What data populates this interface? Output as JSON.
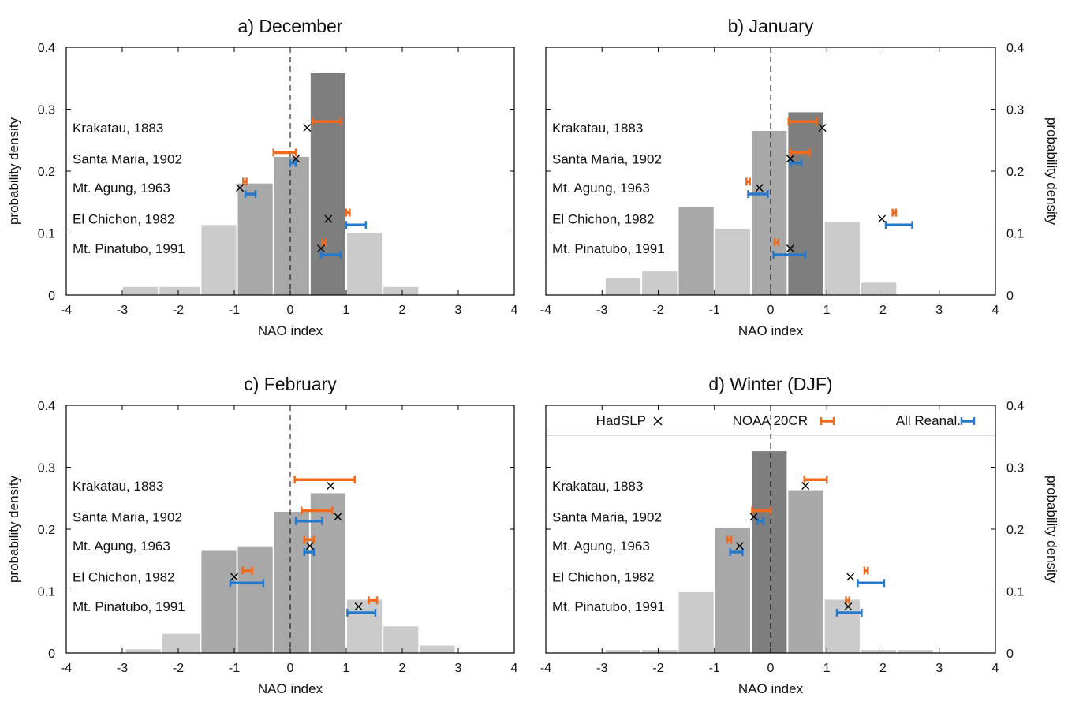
{
  "figure": {
    "xlabel": "NAO index",
    "ylabel": "probability density",
    "xticks": [
      "-4",
      "-3",
      "-2",
      "-1",
      "0",
      "1",
      "2",
      "3",
      "4"
    ],
    "yticks": [
      "0",
      "0.1",
      "0.2",
      "0.3",
      "0.4"
    ],
    "legend": [
      {
        "label": "HadSLP",
        "marker": "cross",
        "color": "#000000"
      },
      {
        "label": "NOAA 20CR",
        "marker": "errorbar",
        "color": "#ef6a1c"
      },
      {
        "label": "All Reanal.",
        "marker": "errorbar",
        "color": "#2878c8"
      }
    ],
    "colors": {
      "hist_light": "#cbcbcb",
      "hist_mid": "#a8a8a8",
      "hist_dark": "#7e7e7e",
      "noaa": "#ef6a1c",
      "reanal": "#2878c8",
      "hadslp": "#000000"
    }
  },
  "chart_data": [
    {
      "type": "bar",
      "title": "a) December",
      "xlabel": "NAO index",
      "ylabel": "probability density",
      "xlim": [
        -4,
        4
      ],
      "ylim": [
        0,
        0.4
      ],
      "bin_edges": [
        -3.0,
        -2.35,
        -1.6,
        -0.95,
        -0.3,
        0.35,
        1.0,
        1.65,
        2.3
      ],
      "density": [
        0.013,
        0.013,
        0.113,
        0.18,
        0.223,
        0.358,
        0.1,
        0.013
      ],
      "shade": [
        "light",
        "light",
        "light",
        "mid",
        "mid",
        "dark",
        "light",
        "light"
      ],
      "eruptions": [
        {
          "name": "Krakatau, 1883",
          "hadslp": [
            0.3,
            0.27
          ],
          "noaa20cr": {
            "x": [
              0.4,
              0.9
            ],
            "y": 0.28
          },
          "all_reanal": null
        },
        {
          "name": "Santa Maria, 1902",
          "hadslp": [
            0.1,
            0.22
          ],
          "noaa20cr": {
            "x": [
              -0.3,
              0.1
            ],
            "y": 0.23
          },
          "all_reanal": {
            "x": [
              0.0,
              0.1
            ],
            "y": 0.213
          }
        },
        {
          "name": "Mt. Agung, 1963",
          "hadslp": [
            -0.9,
            0.173
          ],
          "noaa20cr": {
            "x": [
              -0.84,
              -0.78
            ],
            "y": 0.183
          },
          "all_reanal": {
            "x": [
              -0.8,
              -0.62
            ],
            "y": 0.163
          }
        },
        {
          "name": "El Chichon, 1982",
          "hadslp": [
            0.68,
            0.123
          ],
          "noaa20cr": {
            "x": [
              1.0,
              1.06
            ],
            "y": 0.133
          },
          "all_reanal": {
            "x": [
              1.0,
              1.35
            ],
            "y": 0.113
          }
        },
        {
          "name": "Mt. Pinatubo, 1991",
          "hadslp": [
            0.55,
            0.075
          ],
          "noaa20cr": {
            "x": [
              0.57,
              0.63
            ],
            "y": 0.085
          },
          "all_reanal": {
            "x": [
              0.55,
              0.9
            ],
            "y": 0.065
          }
        }
      ]
    },
    {
      "type": "bar",
      "title": "b) January",
      "xlabel": "NAO index",
      "ylabel": "probability density",
      "xlim": [
        -4,
        4
      ],
      "ylim": [
        0,
        0.4
      ],
      "bin_edges": [
        -2.95,
        -2.3,
        -1.65,
        -1.0,
        -0.35,
        0.3,
        0.95,
        1.6,
        2.25
      ],
      "density": [
        0.027,
        0.038,
        0.142,
        0.107,
        0.265,
        0.295,
        0.118,
        0.02
      ],
      "shade": [
        "light",
        "light",
        "mid",
        "light",
        "mid",
        "dark",
        "light",
        "light"
      ],
      "eruptions": [
        {
          "name": "Krakatau, 1883",
          "hadslp": [
            0.92,
            0.27
          ],
          "noaa20cr": {
            "x": [
              0.32,
              0.82
            ],
            "y": 0.28
          },
          "all_reanal": null
        },
        {
          "name": "Santa Maria, 1902",
          "hadslp": [
            0.35,
            0.22
          ],
          "noaa20cr": {
            "x": [
              0.35,
              0.7
            ],
            "y": 0.23
          },
          "all_reanal": {
            "x": [
              0.35,
              0.55
            ],
            "y": 0.213
          }
        },
        {
          "name": "Mt. Agung, 1963",
          "hadslp": [
            -0.2,
            0.173
          ],
          "noaa20cr": {
            "x": [
              -0.43,
              -0.37
            ],
            "y": 0.183
          },
          "all_reanal": {
            "x": [
              -0.4,
              -0.05
            ],
            "y": 0.163
          }
        },
        {
          "name": "El Chichon, 1982",
          "hadslp": [
            1.98,
            0.123
          ],
          "noaa20cr": {
            "x": [
              2.17,
              2.23
            ],
            "y": 0.133
          },
          "all_reanal": {
            "x": [
              2.05,
              2.52
            ],
            "y": 0.113
          }
        },
        {
          "name": "Mt. Pinatubo, 1991",
          "hadslp": [
            0.35,
            0.075
          ],
          "noaa20cr": {
            "x": [
              0.07,
              0.14
            ],
            "y": 0.085
          },
          "all_reanal": {
            "x": [
              0.05,
              0.62
            ],
            "y": 0.065
          }
        }
      ]
    },
    {
      "type": "bar",
      "title": "c) February",
      "xlabel": "NAO index",
      "ylabel": "probability density",
      "xlim": [
        -4,
        4
      ],
      "ylim": [
        0,
        0.4
      ],
      "bin_edges": [
        -2.95,
        -2.3,
        -1.6,
        -0.95,
        -0.3,
        0.35,
        1.0,
        1.65,
        2.3,
        2.95
      ],
      "density": [
        0.006,
        0.031,
        0.165,
        0.171,
        0.228,
        0.258,
        0.086,
        0.043,
        0.012
      ],
      "shade": [
        "light",
        "light",
        "mid",
        "mid",
        "mid",
        "mid",
        "light",
        "light",
        "light"
      ],
      "eruptions": [
        {
          "name": "Krakatau, 1883",
          "hadslp": [
            0.72,
            0.27
          ],
          "noaa20cr": {
            "x": [
              0.08,
              1.15
            ],
            "y": 0.28
          },
          "all_reanal": null
        },
        {
          "name": "Santa Maria, 1902",
          "hadslp": [
            0.85,
            0.22
          ],
          "noaa20cr": {
            "x": [
              0.2,
              0.75
            ],
            "y": 0.23
          },
          "all_reanal": {
            "x": [
              0.1,
              0.57
            ],
            "y": 0.213
          }
        },
        {
          "name": "Mt. Agung, 1963",
          "hadslp": [
            0.35,
            0.173
          ],
          "noaa20cr": {
            "x": [
              0.25,
              0.42
            ],
            "y": 0.183
          },
          "all_reanal": {
            "x": [
              0.25,
              0.42
            ],
            "y": 0.163
          }
        },
        {
          "name": "El Chichon, 1982",
          "hadslp": [
            -1.0,
            0.123
          ],
          "noaa20cr": {
            "x": [
              -0.85,
              -0.68
            ],
            "y": 0.133
          },
          "all_reanal": {
            "x": [
              -1.07,
              -0.48
            ],
            "y": 0.113
          }
        },
        {
          "name": "Mt. Pinatubo, 1991",
          "hadslp": [
            1.22,
            0.075
          ],
          "noaa20cr": {
            "x": [
              1.4,
              1.55
            ],
            "y": 0.085
          },
          "all_reanal": {
            "x": [
              1.02,
              1.52
            ],
            "y": 0.065
          }
        }
      ]
    },
    {
      "type": "bar",
      "title": "d) Winter (DJF)",
      "xlabel": "NAO index",
      "ylabel": "probability density",
      "xlim": [
        -4,
        4
      ],
      "ylim": [
        0,
        0.4
      ],
      "legend_position": "top",
      "bin_edges": [
        -2.95,
        -2.3,
        -1.65,
        -1.0,
        -0.35,
        0.3,
        0.95,
        1.6,
        2.25,
        2.9
      ],
      "density": [
        0.005,
        0.005,
        0.098,
        0.202,
        0.326,
        0.263,
        0.086,
        0.005,
        0.005
      ],
      "shade": [
        "light",
        "light",
        "light",
        "mid",
        "dark",
        "mid",
        "light",
        "light",
        "light"
      ],
      "eruptions": [
        {
          "name": "Krakatau, 1883",
          "hadslp": [
            0.62,
            0.27
          ],
          "noaa20cr": {
            "x": [
              0.6,
              1.0
            ],
            "y": 0.28
          },
          "all_reanal": null
        },
        {
          "name": "Santa Maria, 1902",
          "hadslp": [
            -0.3,
            0.22
          ],
          "noaa20cr": {
            "x": [
              -0.33,
              0.0
            ],
            "y": 0.23
          },
          "all_reanal": {
            "x": [
              -0.23,
              -0.13
            ],
            "y": 0.213
          }
        },
        {
          "name": "Mt. Agung, 1963",
          "hadslp": [
            -0.55,
            0.173
          ],
          "noaa20cr": {
            "x": [
              -0.77,
              -0.7
            ],
            "y": 0.183
          },
          "all_reanal": {
            "x": [
              -0.72,
              -0.5
            ],
            "y": 0.163
          }
        },
        {
          "name": "El Chichon, 1982",
          "hadslp": [
            1.42,
            0.123
          ],
          "noaa20cr": {
            "x": [
              1.67,
              1.73
            ],
            "y": 0.133
          },
          "all_reanal": {
            "x": [
              1.55,
              2.02
            ],
            "y": 0.113
          }
        },
        {
          "name": "Mt. Pinatubo, 1991",
          "hadslp": [
            1.38,
            0.075
          ],
          "noaa20cr": {
            "x": [
              1.34,
              1.4
            ],
            "y": 0.085
          },
          "all_reanal": {
            "x": [
              1.18,
              1.62
            ],
            "y": 0.065
          }
        }
      ]
    }
  ]
}
